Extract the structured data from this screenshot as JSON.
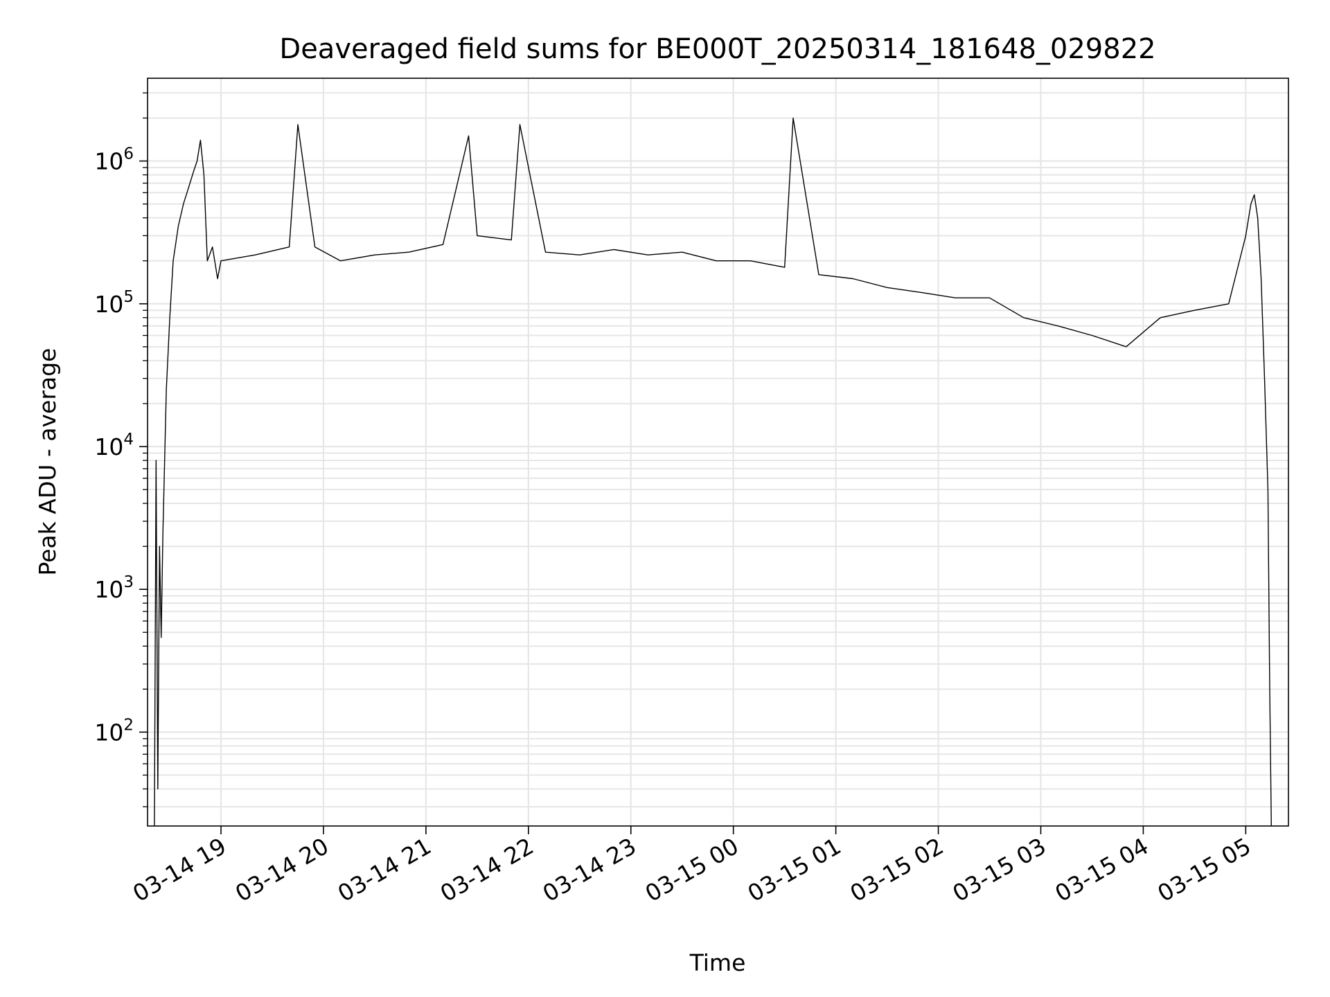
{
  "chart_data": {
    "type": "line",
    "title": "Deaveraged field sums for BE000T_20250314_181648_029822",
    "xlabel": "Time",
    "ylabel": "Peak ADU - average",
    "y_scale": "log",
    "ylim": [
      22,
      3800000
    ],
    "xlim": [
      "2025-03-14 18:17",
      "2025-03-15 05:25"
    ],
    "grid": true,
    "line_color": "#000000",
    "grid_color": "#e6e6e6",
    "x_ticks": [
      {
        "time": "2025-03-14 19:00",
        "label": "03-14 19"
      },
      {
        "time": "2025-03-14 20:00",
        "label": "03-14 20"
      },
      {
        "time": "2025-03-14 21:00",
        "label": "03-14 21"
      },
      {
        "time": "2025-03-14 22:00",
        "label": "03-14 22"
      },
      {
        "time": "2025-03-14 23:00",
        "label": "03-14 23"
      },
      {
        "time": "2025-03-15 00:00",
        "label": "03-15 00"
      },
      {
        "time": "2025-03-15 01:00",
        "label": "03-15 01"
      },
      {
        "time": "2025-03-15 02:00",
        "label": "03-15 02"
      },
      {
        "time": "2025-03-15 03:00",
        "label": "03-15 03"
      },
      {
        "time": "2025-03-15 04:00",
        "label": "03-15 04"
      },
      {
        "time": "2025-03-15 05:00",
        "label": "03-15 05"
      }
    ],
    "y_ticks": [
      {
        "value": 100,
        "base": "10",
        "exp": "2"
      },
      {
        "value": 1000,
        "base": "10",
        "exp": "3"
      },
      {
        "value": 10000,
        "base": "10",
        "exp": "4"
      },
      {
        "value": 100000,
        "base": "10",
        "exp": "5"
      },
      {
        "value": 1000000,
        "base": "10",
        "exp": "6"
      }
    ],
    "series": [
      {
        "x": [
          "2025-03-14 18:21",
          "2025-03-14 18:22",
          "2025-03-14 18:23",
          "2025-03-14 18:24",
          "2025-03-14 18:25",
          "2025-03-14 18:26",
          "2025-03-14 18:28",
          "2025-03-14 18:30",
          "2025-03-14 18:32",
          "2025-03-14 18:35",
          "2025-03-14 18:38",
          "2025-03-14 18:41",
          "2025-03-14 18:44",
          "2025-03-14 18:46",
          "2025-03-14 18:48",
          "2025-03-14 18:50",
          "2025-03-14 18:52",
          "2025-03-14 18:55",
          "2025-03-14 18:58",
          "2025-03-14 19:00",
          "2025-03-14 19:20",
          "2025-03-14 19:40",
          "2025-03-14 19:45",
          "2025-03-14 19:55",
          "2025-03-14 20:10",
          "2025-03-14 20:30",
          "2025-03-14 20:50",
          "2025-03-14 21:10",
          "2025-03-14 21:25",
          "2025-03-14 21:30",
          "2025-03-14 21:50",
          "2025-03-14 21:55",
          "2025-03-14 22:10",
          "2025-03-14 22:30",
          "2025-03-14 22:50",
          "2025-03-14 23:10",
          "2025-03-14 23:30",
          "2025-03-14 23:50",
          "2025-03-15 00:10",
          "2025-03-15 00:30",
          "2025-03-15 00:35",
          "2025-03-15 00:50",
          "2025-03-15 01:10",
          "2025-03-15 01:30",
          "2025-03-15 01:50",
          "2025-03-15 02:10",
          "2025-03-15 02:30",
          "2025-03-15 02:50",
          "2025-03-15 03:10",
          "2025-03-15 03:30",
          "2025-03-15 03:50",
          "2025-03-15 04:10",
          "2025-03-15 04:30",
          "2025-03-15 04:50",
          "2025-03-15 05:00",
          "2025-03-15 05:03",
          "2025-03-15 05:05",
          "2025-03-15 05:07",
          "2025-03-15 05:09",
          "2025-03-15 05:11",
          "2025-03-15 05:13",
          "2025-03-15 05:14",
          "2025-03-15 05:15"
        ],
        "y": [
          22,
          8000,
          40,
          2000,
          460,
          2500,
          25000,
          80000,
          200000,
          350000,
          500000,
          650000,
          850000,
          1000000,
          1400000,
          800000,
          200000,
          250000,
          150000,
          200000,
          220000,
          250000,
          1800000,
          250000,
          200000,
          220000,
          230000,
          260000,
          1500000,
          300000,
          280000,
          1800000,
          230000,
          220000,
          240000,
          220000,
          230000,
          200000,
          200000,
          180000,
          2000000,
          160000,
          150000,
          130000,
          120000,
          110000,
          110000,
          80000,
          70000,
          60000,
          50000,
          80000,
          90000,
          100000,
          300000,
          500000,
          580000,
          400000,
          150000,
          30000,
          5000,
          220,
          22
        ]
      }
    ]
  }
}
